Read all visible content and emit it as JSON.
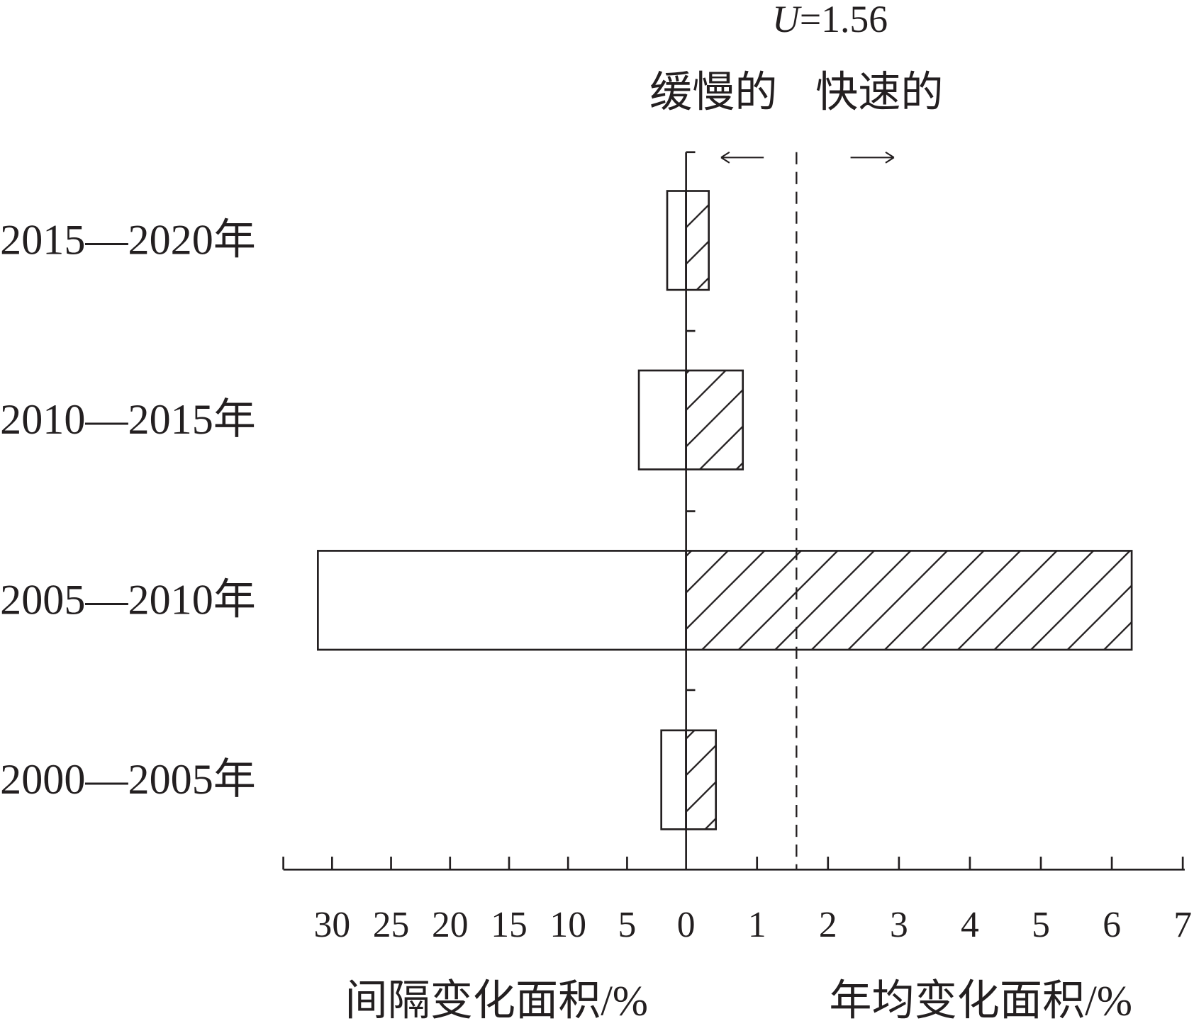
{
  "chart_data": {
    "type": "bar",
    "orientation": "horizontal",
    "categories": [
      "2015—2020年",
      "2010—2015年",
      "2005—2010年",
      "2000—2005年"
    ],
    "series": [
      {
        "name": "间隔变化面积/%",
        "side": "left",
        "fill": "none",
        "values": [
          1.6,
          4.0,
          31.2,
          2.1
        ]
      },
      {
        "name": "年均变化面积/%",
        "side": "right",
        "fill": "hatched",
        "values": [
          0.32,
          0.8,
          6.28,
          0.42
        ]
      }
    ],
    "left_axis": {
      "label": "间隔变化面积/%",
      "ticks": [
        "30",
        "25",
        "20",
        "15",
        "10",
        "5",
        "0"
      ],
      "range": [
        0,
        34
      ]
    },
    "right_axis": {
      "label": "年均变化面积/%",
      "ticks": [
        "1",
        "2",
        "3",
        "4",
        "5",
        "6",
        "7"
      ],
      "range": [
        0,
        7
      ]
    },
    "threshold": {
      "symbol": "U",
      "text": "=1.56",
      "value": 1.56,
      "style": "dashed"
    },
    "annotations": {
      "slow": "缓慢的",
      "fast": "快速的",
      "left_arrow": "←",
      "right_arrow": "→"
    },
    "grid": false,
    "colors": {
      "ink": "#231f20",
      "background": "#ffffff"
    }
  }
}
